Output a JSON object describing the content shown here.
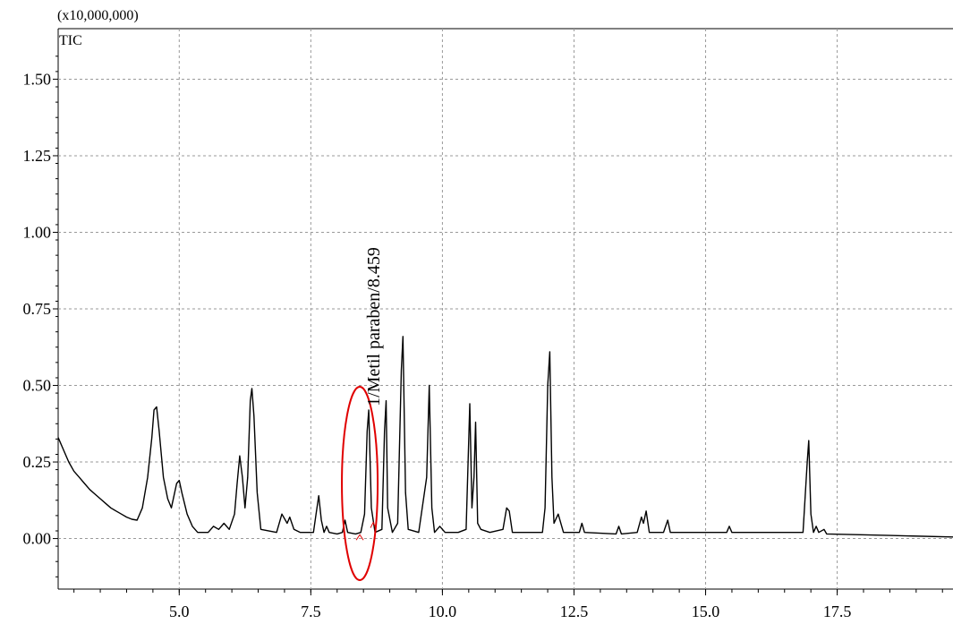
{
  "chart_data": {
    "type": "line",
    "multiplier": "(x10,000,000)",
    "trace_label": "TIC",
    "xlim": [
      2.7,
      19.7
    ],
    "ylim": [
      -0.165,
      1.665
    ],
    "x_ticks": [
      "5.0",
      "7.5",
      "10.0",
      "12.5",
      "15.0",
      "17.5"
    ],
    "y_ticks": [
      "0.00",
      "0.25",
      "0.50",
      "0.75",
      "1.00",
      "1.25",
      "1.50"
    ],
    "grid": true,
    "series": [
      {
        "color": "#000000",
        "points": [
          [
            2.7,
            0.33
          ],
          [
            2.8,
            0.29
          ],
          [
            2.9,
            0.25
          ],
          [
            3.0,
            0.22
          ],
          [
            3.1,
            0.2
          ],
          [
            3.2,
            0.18
          ],
          [
            3.3,
            0.16
          ],
          [
            3.4,
            0.145
          ],
          [
            3.5,
            0.13
          ],
          [
            3.6,
            0.115
          ],
          [
            3.7,
            0.1
          ],
          [
            3.8,
            0.09
          ],
          [
            3.9,
            0.08
          ],
          [
            4.0,
            0.07
          ],
          [
            4.1,
            0.063
          ],
          [
            4.2,
            0.06
          ],
          [
            4.3,
            0.1
          ],
          [
            4.4,
            0.2
          ],
          [
            4.48,
            0.33
          ],
          [
            4.52,
            0.42
          ],
          [
            4.57,
            0.43
          ],
          [
            4.62,
            0.35
          ],
          [
            4.7,
            0.2
          ],
          [
            4.78,
            0.13
          ],
          [
            4.85,
            0.1
          ],
          [
            4.95,
            0.18
          ],
          [
            5.0,
            0.19
          ],
          [
            5.05,
            0.15
          ],
          [
            5.15,
            0.08
          ],
          [
            5.25,
            0.04
          ],
          [
            5.35,
            0.02
          ],
          [
            5.55,
            0.02
          ],
          [
            5.65,
            0.04
          ],
          [
            5.75,
            0.03
          ],
          [
            5.85,
            0.05
          ],
          [
            5.95,
            0.03
          ],
          [
            6.05,
            0.08
          ],
          [
            6.1,
            0.18
          ],
          [
            6.15,
            0.27
          ],
          [
            6.2,
            0.2
          ],
          [
            6.25,
            0.1
          ],
          [
            6.3,
            0.2
          ],
          [
            6.35,
            0.45
          ],
          [
            6.38,
            0.49
          ],
          [
            6.42,
            0.4
          ],
          [
            6.48,
            0.15
          ],
          [
            6.55,
            0.03
          ],
          [
            6.85,
            0.02
          ],
          [
            6.95,
            0.08
          ],
          [
            7.05,
            0.05
          ],
          [
            7.1,
            0.07
          ],
          [
            7.18,
            0.03
          ],
          [
            7.3,
            0.02
          ],
          [
            7.55,
            0.02
          ],
          [
            7.6,
            0.08
          ],
          [
            7.65,
            0.14
          ],
          [
            7.7,
            0.06
          ],
          [
            7.75,
            0.02
          ],
          [
            7.8,
            0.04
          ],
          [
            7.85,
            0.02
          ],
          [
            8.0,
            0.015
          ],
          [
            8.1,
            0.02
          ],
          [
            8.15,
            0.06
          ],
          [
            8.2,
            0.02
          ],
          [
            8.35,
            0.015
          ],
          [
            8.45,
            0.02
          ],
          [
            8.52,
            0.08
          ],
          [
            8.57,
            0.35
          ],
          [
            8.6,
            0.42
          ],
          [
            8.65,
            0.1
          ],
          [
            8.72,
            0.02
          ],
          [
            8.85,
            0.03
          ],
          [
            8.9,
            0.35
          ],
          [
            8.93,
            0.45
          ],
          [
            8.96,
            0.1
          ],
          [
            9.05,
            0.02
          ],
          [
            9.15,
            0.05
          ],
          [
            9.22,
            0.55
          ],
          [
            9.25,
            0.66
          ],
          [
            9.3,
            0.15
          ],
          [
            9.35,
            0.03
          ],
          [
            9.55,
            0.02
          ],
          [
            9.7,
            0.2
          ],
          [
            9.75,
            0.5
          ],
          [
            9.8,
            0.1
          ],
          [
            9.85,
            0.02
          ],
          [
            9.95,
            0.04
          ],
          [
            10.05,
            0.02
          ],
          [
            10.3,
            0.02
          ],
          [
            10.45,
            0.03
          ],
          [
            10.52,
            0.44
          ],
          [
            10.56,
            0.1
          ],
          [
            10.6,
            0.2
          ],
          [
            10.63,
            0.38
          ],
          [
            10.67,
            0.05
          ],
          [
            10.73,
            0.03
          ],
          [
            10.9,
            0.02
          ],
          [
            11.15,
            0.03
          ],
          [
            11.22,
            0.1
          ],
          [
            11.27,
            0.09
          ],
          [
            11.33,
            0.02
          ],
          [
            11.9,
            0.02
          ],
          [
            11.95,
            0.1
          ],
          [
            12.0,
            0.5
          ],
          [
            12.04,
            0.61
          ],
          [
            12.08,
            0.2
          ],
          [
            12.12,
            0.05
          ],
          [
            12.2,
            0.08
          ],
          [
            12.3,
            0.02
          ],
          [
            12.6,
            0.02
          ],
          [
            12.65,
            0.05
          ],
          [
            12.7,
            0.02
          ],
          [
            13.3,
            0.015
          ],
          [
            13.35,
            0.04
          ],
          [
            13.4,
            0.015
          ],
          [
            13.7,
            0.02
          ],
          [
            13.78,
            0.07
          ],
          [
            13.82,
            0.05
          ],
          [
            13.87,
            0.09
          ],
          [
            13.93,
            0.02
          ],
          [
            14.2,
            0.02
          ],
          [
            14.28,
            0.06
          ],
          [
            14.33,
            0.02
          ],
          [
            15.4,
            0.02
          ],
          [
            15.45,
            0.04
          ],
          [
            15.5,
            0.02
          ],
          [
            16.85,
            0.02
          ],
          [
            16.93,
            0.25
          ],
          [
            16.96,
            0.32
          ],
          [
            17.0,
            0.08
          ],
          [
            17.05,
            0.02
          ],
          [
            17.1,
            0.04
          ],
          [
            17.15,
            0.02
          ],
          [
            17.25,
            0.03
          ],
          [
            17.3,
            0.015
          ],
          [
            18.5,
            0.01
          ],
          [
            19.7,
            0.005
          ]
        ]
      }
    ],
    "annotation": {
      "label": "1/Metil paraben/8.459",
      "peak": [
        8.6,
        0.42
      ],
      "ellipse_color": "#e00000"
    }
  }
}
